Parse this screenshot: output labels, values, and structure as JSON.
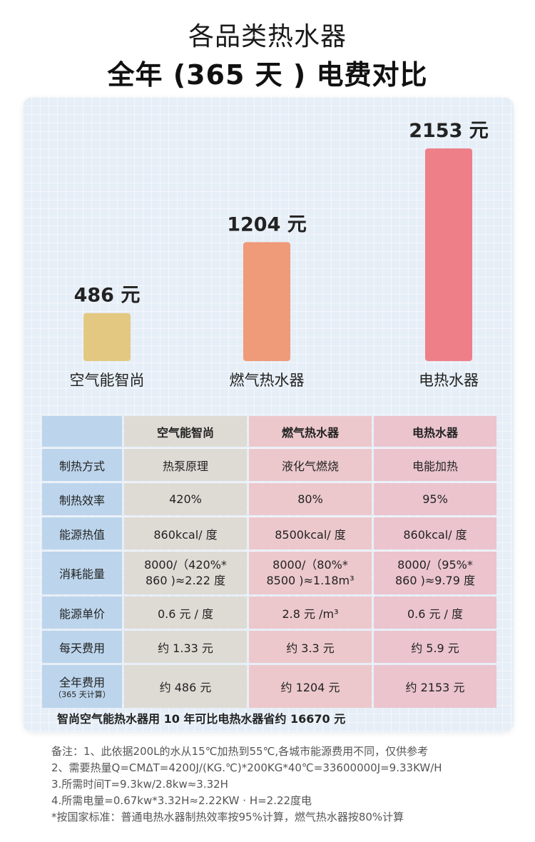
{
  "title_line1": "各品类热水器",
  "title_line2": "全年 (365 天 ) 电费对比",
  "chart_data": {
    "type": "bar",
    "categories": [
      "空气能智尚",
      "燃气热水器",
      "电热水器"
    ],
    "values": [
      486,
      1204,
      2153
    ],
    "value_labels": [
      "486 元",
      "1204 元",
      "2153 元"
    ],
    "colors": [
      "#e3c882",
      "#ef9a78",
      "#ee7f88"
    ],
    "unit": "元",
    "ylim": [
      0,
      2153
    ]
  },
  "table": {
    "headers": [
      "",
      "空气能智尚",
      "燃气热水器",
      "电热水器"
    ],
    "rows": [
      {
        "label": "制热方式",
        "cells": [
          "热泵原理",
          "液化气燃烧",
          "电能加热"
        ]
      },
      {
        "label": "制热效率",
        "cells": [
          "420%",
          "80%",
          "95%"
        ]
      },
      {
        "label": "能源热值",
        "cells": [
          "860kcal/ 度",
          "8500kcal/ 度",
          "860kcal/ 度"
        ]
      },
      {
        "label": "消耗能量",
        "cells_a": [
          "8000/（420%*",
          "8000/（80%*",
          "8000/（95%*"
        ],
        "cells_b": [
          "860 )≈2.22 度",
          "8500 )≈1.18m³",
          "860 )≈9.79 度"
        ]
      },
      {
        "label": "能源单价",
        "cells": [
          "0.6 元 / 度",
          "2.8 元 /m³",
          "0.6 元 / 度"
        ]
      },
      {
        "label": "每天费用",
        "cells": [
          "约 1.33 元",
          "约 3.3 元",
          "约 5.9 元"
        ]
      },
      {
        "label": "全年费用",
        "sublabel": "（365 天计算）",
        "cells": [
          "约 486 元",
          "约 1204 元",
          "约 2153 元"
        ]
      }
    ]
  },
  "summary": "智尚空气能热水器用 10 年可比电热水器省约 16670 元",
  "notes": [
    "备注：1、此依据200L的水从15℃加热到55℃,各城市能源费用不同，仅供参考",
    "2、需要热量Q=CMΔT=4200J/(KG.℃)*200KG*40℃=33600000J=9.33KW/H",
    "3.所需时间T=9.3kw/2.8kw≈3.32H",
    "4.所需电量=0.67kw*3.32H≈2.22KW · H=2.22度电",
    "*按国家标准：普通电热水器制热效率按95%计算，燃气热水器按80%计算"
  ]
}
